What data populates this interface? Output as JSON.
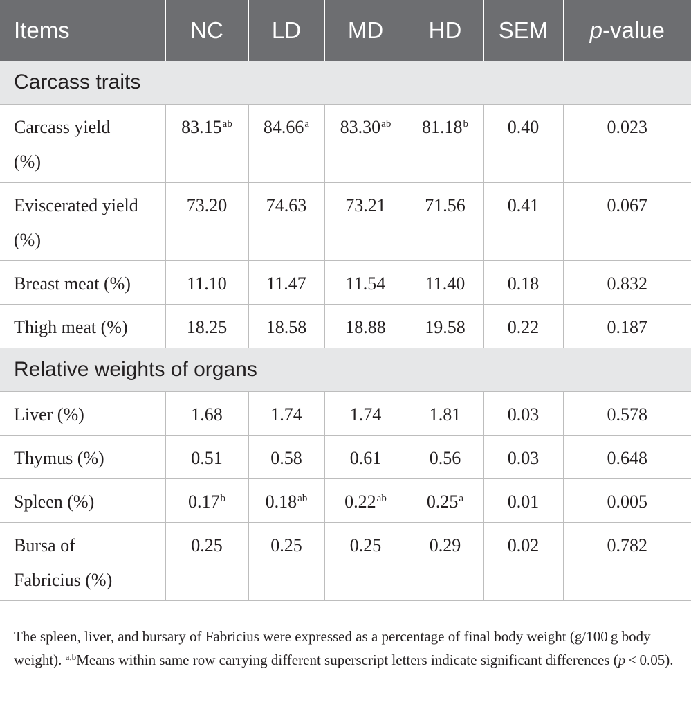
{
  "table": {
    "headers": [
      "Items",
      "NC",
      "LD",
      "MD",
      "HD",
      "SEM",
      "p",
      "-value"
    ],
    "sections": [
      {
        "title": "Carcass traits",
        "rows": [
          {
            "label_lines": [
              "Carcass yield",
              "(%)"
            ],
            "cells": [
              {
                "v": "83.15",
                "s": "ab"
              },
              {
                "v": "84.66",
                "s": "a"
              },
              {
                "v": "83.30",
                "s": "ab"
              },
              {
                "v": "81.18",
                "s": "b"
              },
              {
                "v": "0.40",
                "s": ""
              },
              {
                "v": "0.023",
                "s": ""
              }
            ]
          },
          {
            "label_lines": [
              "Eviscerated yield",
              "(%)"
            ],
            "cells": [
              {
                "v": "73.20",
                "s": ""
              },
              {
                "v": "74.63",
                "s": ""
              },
              {
                "v": "73.21",
                "s": ""
              },
              {
                "v": "71.56",
                "s": ""
              },
              {
                "v": "0.41",
                "s": ""
              },
              {
                "v": "0.067",
                "s": ""
              }
            ]
          },
          {
            "label_lines": [
              "Breast meat (%)"
            ],
            "cells": [
              {
                "v": "11.10",
                "s": ""
              },
              {
                "v": "11.47",
                "s": ""
              },
              {
                "v": "11.54",
                "s": ""
              },
              {
                "v": "11.40",
                "s": ""
              },
              {
                "v": "0.18",
                "s": ""
              },
              {
                "v": "0.832",
                "s": ""
              }
            ]
          },
          {
            "label_lines": [
              "Thigh meat (%)"
            ],
            "cells": [
              {
                "v": "18.25",
                "s": ""
              },
              {
                "v": "18.58",
                "s": ""
              },
              {
                "v": "18.88",
                "s": ""
              },
              {
                "v": "19.58",
                "s": ""
              },
              {
                "v": "0.22",
                "s": ""
              },
              {
                "v": "0.187",
                "s": ""
              }
            ]
          }
        ]
      },
      {
        "title": "Relative weights of organs",
        "rows": [
          {
            "label_lines": [
              "Liver (%)"
            ],
            "cells": [
              {
                "v": "1.68",
                "s": ""
              },
              {
                "v": "1.74",
                "s": ""
              },
              {
                "v": "1.74",
                "s": ""
              },
              {
                "v": "1.81",
                "s": ""
              },
              {
                "v": "0.03",
                "s": ""
              },
              {
                "v": "0.578",
                "s": ""
              }
            ]
          },
          {
            "label_lines": [
              "Thymus (%)"
            ],
            "cells": [
              {
                "v": "0.51",
                "s": ""
              },
              {
                "v": "0.58",
                "s": ""
              },
              {
                "v": "0.61",
                "s": ""
              },
              {
                "v": "0.56",
                "s": ""
              },
              {
                "v": "0.03",
                "s": ""
              },
              {
                "v": "0.648",
                "s": ""
              }
            ]
          },
          {
            "label_lines": [
              "Spleen (%)"
            ],
            "cells": [
              {
                "v": "0.17",
                "s": "b"
              },
              {
                "v": "0.18",
                "s": "ab"
              },
              {
                "v": "0.22",
                "s": "ab"
              },
              {
                "v": "0.25",
                "s": "a"
              },
              {
                "v": "0.01",
                "s": ""
              },
              {
                "v": "0.005",
                "s": ""
              }
            ]
          },
          {
            "label_lines": [
              "Bursa of",
              "Fabricius (%)"
            ],
            "cells": [
              {
                "v": "0.25",
                "s": ""
              },
              {
                "v": "0.25",
                "s": ""
              },
              {
                "v": "0.25",
                "s": ""
              },
              {
                "v": "0.29",
                "s": ""
              },
              {
                "v": "0.02",
                "s": ""
              },
              {
                "v": "0.782",
                "s": ""
              }
            ]
          }
        ]
      }
    ]
  },
  "footnote": {
    "text1": "The spleen, liver, and bursary of Fabricius were expressed as a percentage of final body weight (g/100 g body weight). ",
    "sup": "a,b",
    "text2": "Means within same row carrying different superscript letters indicate significant differences (",
    "p": "p",
    "text3": " < 0.05)."
  }
}
